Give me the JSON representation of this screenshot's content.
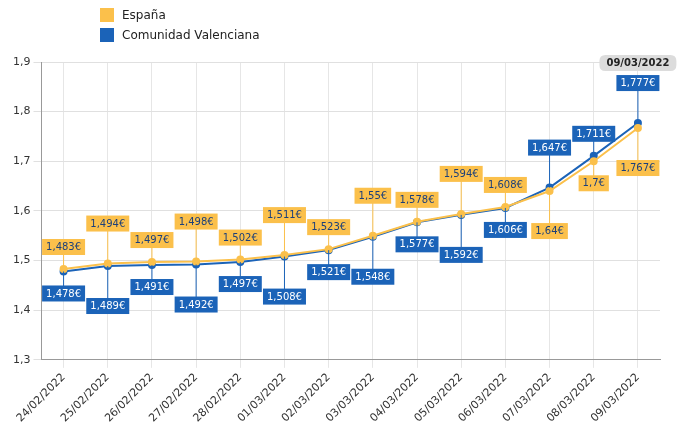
{
  "chart_data": {
    "type": "line",
    "categories": [
      "24/02/2022",
      "25/02/2022",
      "26/02/2022",
      "27/02/2022",
      "28/02/2022",
      "01/03/2022",
      "02/03/2022",
      "03/03/2022",
      "04/03/2022",
      "05/03/2022",
      "06/03/2022",
      "07/03/2022",
      "08/03/2022",
      "09/03/2022"
    ],
    "series": [
      {
        "name": "España",
        "color": "#fbc04b",
        "values": [
          1.483,
          1.494,
          1.497,
          1.498,
          1.502,
          1.511,
          1.523,
          1.55,
          1.578,
          1.594,
          1.608,
          1.64,
          1.7,
          1.767
        ],
        "value_labels": [
          "1,483€",
          "1,494€",
          "1,497€",
          "1,498€",
          "1,502€",
          "1,511€",
          "1,523€",
          "1,55€",
          "1,578€",
          "1,594€",
          "1,608€",
          "1,64€",
          "1,7€",
          "1,767€"
        ]
      },
      {
        "name": "Comunidad Valenciana",
        "color": "#1b63b8",
        "values": [
          1.478,
          1.489,
          1.491,
          1.492,
          1.497,
          1.508,
          1.521,
          1.548,
          1.577,
          1.592,
          1.606,
          1.647,
          1.711,
          1.777
        ],
        "value_labels": [
          "1,478€",
          "1,489€",
          "1,491€",
          "1,492€",
          "1,497€",
          "1,508€",
          "1,521€",
          "1,548€",
          "1,577€",
          "1,592€",
          "1,606€",
          "1,647€",
          "1,711€",
          "1,777€"
        ]
      }
    ],
    "ylim": [
      1.3,
      1.9
    ],
    "yticks": [
      {
        "value": 1.3,
        "label": "1,3"
      },
      {
        "value": 1.4,
        "label": "1,4"
      },
      {
        "value": 1.5,
        "label": "1,5"
      },
      {
        "value": 1.6,
        "label": "1,6"
      },
      {
        "value": 1.7,
        "label": "1,7"
      },
      {
        "value": 1.8,
        "label": "1,8"
      },
      {
        "value": 1.9,
        "label": "1,9"
      }
    ],
    "grid": true,
    "legend": "upper left",
    "marker": "circle",
    "data_labels": true,
    "annotations": [
      {
        "text": "09/03/2022"
      }
    ]
  }
}
